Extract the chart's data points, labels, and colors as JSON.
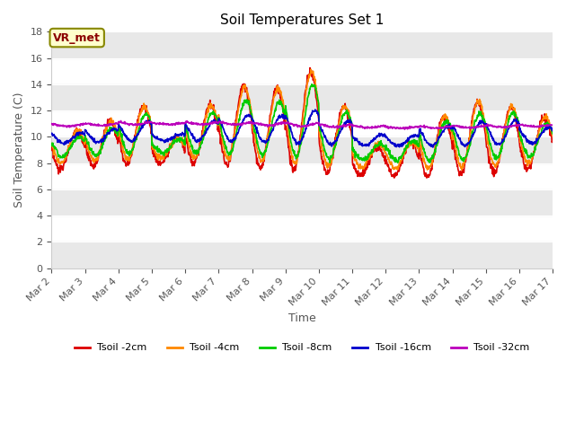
{
  "title": "Soil Temperatures Set 1",
  "xlabel": "Time",
  "ylabel": "Soil Temperature (C)",
  "ylim": [
    0,
    18
  ],
  "yticks": [
    0,
    2,
    4,
    6,
    8,
    10,
    12,
    14,
    16,
    18
  ],
  "series_colors": [
    "#dd0000",
    "#ff8800",
    "#00cc00",
    "#0000cc",
    "#bb00bb"
  ],
  "series_labels": [
    "Tsoil -2cm",
    "Tsoil -4cm",
    "Tsoil -8cm",
    "Tsoil -16cm",
    "Tsoil -32cm"
  ],
  "xtick_labels": [
    "Mar 2",
    "Mar 3",
    "Mar 4",
    "Mar 5",
    "Mar 6",
    "Mar 7",
    "Mar 8",
    "Mar 9",
    "Mar 10",
    "Mar 11",
    "Mar 12",
    "Mar 13",
    "Mar 14",
    "Mar 15",
    "Mar 16",
    "Mar 17"
  ],
  "annotation_text": "VR_met",
  "bg_color": "#ffffff",
  "plot_bg_color": "#ffffff",
  "stripe_color": "#e8e8e8",
  "linewidth": 1.2
}
